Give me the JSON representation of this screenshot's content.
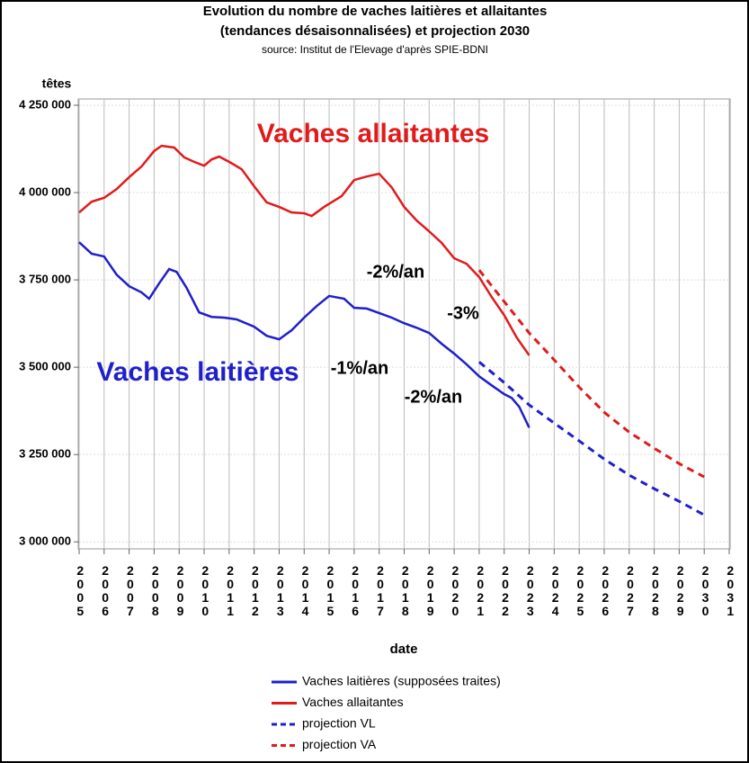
{
  "chart_data": {
    "type": "line",
    "title": "Evolution du nombre de vaches laitières et allaitantes",
    "subtitle": "(tendances désaisonnalisées) et projection 2030",
    "source": "source: Institut de l'Elevage d'après SPIE-BDNI",
    "ylabel": "têtes",
    "xlabel": "date",
    "xlim": [
      2005,
      2031
    ],
    "xticks": [
      2005,
      2006,
      2007,
      2008,
      2009,
      2010,
      2011,
      2012,
      2013,
      2014,
      2015,
      2016,
      2017,
      2018,
      2019,
      2020,
      2021,
      2022,
      2023,
      2024,
      2025,
      2026,
      2027,
      2028,
      2029,
      2030,
      2031
    ],
    "ylim": [
      2980000,
      4268000
    ],
    "yticks": [
      {
        "value": 3000000,
        "label": "3 000 000"
      },
      {
        "value": 3250000,
        "label": "3 250 000"
      },
      {
        "value": 3500000,
        "label": "3 500 000"
      },
      {
        "value": 3750000,
        "label": "3 750 000"
      },
      {
        "value": 4000000,
        "label": "4 000 000"
      },
      {
        "value": 4250000,
        "label": "4 250 000"
      }
    ],
    "grid": true,
    "series": [
      {
        "name": "Vaches laitières (supposées traites)",
        "color": "#1f1fcc",
        "style": "solid",
        "x": [
          2005,
          2005.5,
          2006,
          2006.5,
          2007,
          2007.5,
          2007.8,
          2008.2,
          2008.6,
          2008.9,
          2009.3,
          2009.8,
          2010.3,
          2010.8,
          2011.3,
          2012,
          2012.5,
          2013,
          2013.5,
          2014,
          2014.5,
          2015,
          2015.6,
          2016,
          2016.5,
          2017,
          2017.5,
          2018,
          2018.5,
          2019,
          2019.5,
          2020,
          2020.5,
          2021,
          2021.5,
          2022,
          2022.3,
          2022.6,
          2023
        ],
        "values": [
          3858000,
          3825000,
          3817000,
          3765000,
          3732000,
          3714000,
          3696000,
          3740000,
          3781000,
          3773000,
          3727000,
          3657000,
          3644000,
          3642000,
          3637000,
          3616000,
          3590000,
          3580000,
          3606000,
          3642000,
          3675000,
          3704000,
          3696000,
          3670000,
          3668000,
          3655000,
          3642000,
          3626000,
          3613000,
          3598000,
          3567000,
          3539000,
          3508000,
          3474000,
          3448000,
          3423000,
          3412000,
          3387000,
          3327000
        ]
      },
      {
        "name": "Vaches allaitantes",
        "color": "#e01b1b",
        "style": "solid",
        "x": [
          2005,
          2005.5,
          2006,
          2006.5,
          2007,
          2007.5,
          2008,
          2008.3,
          2008.8,
          2009.2,
          2009.6,
          2010,
          2010.3,
          2010.6,
          2011,
          2011.5,
          2012,
          2012.5,
          2013,
          2013.5,
          2014,
          2014.3,
          2014.8,
          2015.5,
          2016,
          2016.5,
          2017,
          2017.5,
          2018,
          2018.5,
          2019,
          2019.5,
          2020,
          2020.5,
          2021,
          2021.5,
          2022,
          2022.5,
          2023
        ],
        "values": [
          3943000,
          3974000,
          3985000,
          4010000,
          4044000,
          4075000,
          4119000,
          4134000,
          4129000,
          4101000,
          4088000,
          4077000,
          4095000,
          4103000,
          4088000,
          4067000,
          4018000,
          3972000,
          3959000,
          3943000,
          3941000,
          3933000,
          3959000,
          3990000,
          4036000,
          4046000,
          4054000,
          4015000,
          3959000,
          3920000,
          3889000,
          3856000,
          3812000,
          3796000,
          3758000,
          3701000,
          3649000,
          3585000,
          3534000
        ]
      },
      {
        "name": "projection VL",
        "color": "#1f1fcc",
        "style": "dashed",
        "x": [
          2021,
          2022,
          2023,
          2024,
          2025,
          2026,
          2027,
          2028,
          2029,
          2030
        ],
        "values": [
          3515000,
          3456000,
          3392000,
          3340000,
          3289000,
          3237000,
          3191000,
          3152000,
          3116000,
          3077000
        ]
      },
      {
        "name": "projection VA",
        "color": "#e01b1b",
        "style": "dashed",
        "x": [
          2021,
          2022,
          2023,
          2024,
          2025,
          2026,
          2027,
          2028,
          2029,
          2030
        ],
        "values": [
          3778000,
          3688000,
          3598000,
          3521000,
          3443000,
          3371000,
          3314000,
          3268000,
          3224000,
          3186000
        ]
      }
    ],
    "annotations": [
      {
        "text": "Vaches allaitantes",
        "color": "#e01b1b"
      },
      {
        "text": "Vaches laitières",
        "color": "#1f1fcc"
      },
      {
        "text": "-2%/an",
        "color": "#000000"
      },
      {
        "text": "-3%",
        "color": "#000000"
      },
      {
        "text": "-1%/an",
        "color": "#000000"
      },
      {
        "text": "-2%/an",
        "color": "#000000"
      }
    ]
  }
}
